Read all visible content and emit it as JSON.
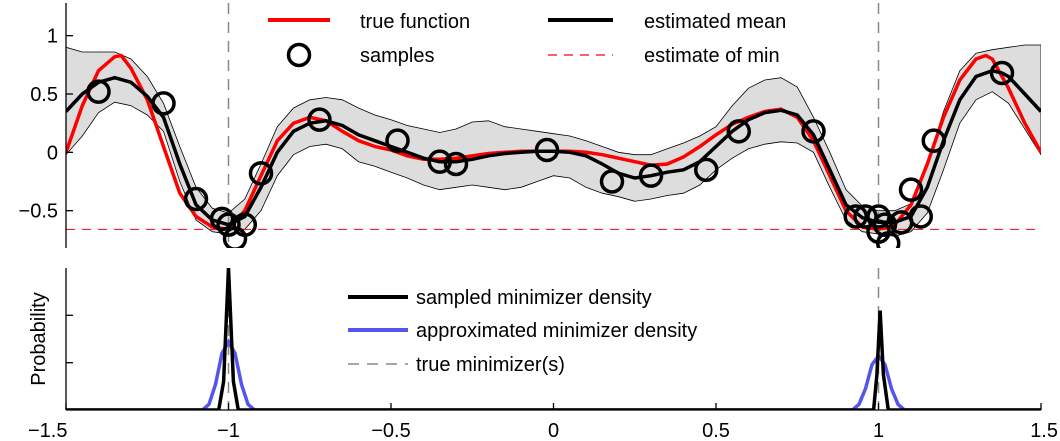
{
  "chart_data": [
    {
      "type": "line",
      "panel": "top",
      "xlim": [
        -1.5,
        1.5
      ],
      "ylim": [
        -0.82,
        1.28
      ],
      "yticks": [
        -0.5,
        0,
        0.5,
        1
      ],
      "ytick_labels": [
        "−0.5",
        "0",
        "0.5",
        "1"
      ],
      "grid": false,
      "legend_position": "top-center",
      "legend": {
        "true_function": "true function",
        "samples": "samples",
        "estimated_mean": "estimated mean",
        "estimate_of_min": "estimate of min"
      },
      "series": [
        {
          "name": "true function",
          "color": "#ff0000",
          "x": [
            -1.5,
            -1.45,
            -1.4,
            -1.35,
            -1.33,
            -1.3,
            -1.25,
            -1.2,
            -1.15,
            -1.1,
            -1.05,
            -1.0,
            -0.95,
            -0.9,
            -0.85,
            -0.8,
            -0.75,
            -0.7,
            -0.65,
            -0.6,
            -0.55,
            -0.5,
            -0.45,
            -0.4,
            -0.35,
            -0.3,
            -0.25,
            -0.2,
            -0.15,
            -0.1,
            -0.05,
            0.0,
            0.05,
            0.1,
            0.15,
            0.2,
            0.25,
            0.3,
            0.35,
            0.4,
            0.45,
            0.5,
            0.55,
            0.6,
            0.65,
            0.7,
            0.75,
            0.8,
            0.85,
            0.9,
            0.95,
            1.0,
            1.05,
            1.1,
            1.15,
            1.2,
            1.25,
            1.3,
            1.33,
            1.35,
            1.4,
            1.45,
            1.5
          ],
          "y": [
            0.0,
            0.4,
            0.7,
            0.82,
            0.83,
            0.72,
            0.45,
            0.05,
            -0.35,
            -0.55,
            -0.64,
            -0.66,
            -0.5,
            -0.2,
            0.1,
            0.25,
            0.3,
            0.27,
            0.18,
            0.1,
            0.05,
            0.02,
            -0.03,
            -0.06,
            -0.06,
            -0.05,
            -0.03,
            -0.01,
            0.0,
            0.01,
            0.01,
            0.01,
            0.01,
            0.0,
            -0.02,
            -0.05,
            -0.08,
            -0.11,
            -0.1,
            -0.04,
            0.05,
            0.15,
            0.24,
            0.3,
            0.35,
            0.37,
            0.3,
            0.1,
            -0.2,
            -0.5,
            -0.64,
            -0.66,
            -0.62,
            -0.45,
            -0.1,
            0.3,
            0.62,
            0.8,
            0.83,
            0.8,
            0.55,
            0.25,
            0.0
          ]
        },
        {
          "name": "estimated mean",
          "color": "#000000",
          "x": [
            -1.5,
            -1.45,
            -1.4,
            -1.35,
            -1.3,
            -1.25,
            -1.2,
            -1.15,
            -1.1,
            -1.05,
            -1.0,
            -0.95,
            -0.9,
            -0.85,
            -0.8,
            -0.75,
            -0.7,
            -0.65,
            -0.6,
            -0.55,
            -0.5,
            -0.45,
            -0.4,
            -0.35,
            -0.3,
            -0.25,
            -0.2,
            -0.15,
            -0.1,
            -0.05,
            0.0,
            0.05,
            0.1,
            0.15,
            0.2,
            0.25,
            0.3,
            0.35,
            0.4,
            0.45,
            0.5,
            0.55,
            0.6,
            0.65,
            0.7,
            0.75,
            0.8,
            0.85,
            0.9,
            0.95,
            1.0,
            1.05,
            1.1,
            1.15,
            1.2,
            1.25,
            1.3,
            1.35,
            1.38,
            1.4,
            1.45,
            1.5
          ],
          "y": [
            0.35,
            0.5,
            0.6,
            0.64,
            0.6,
            0.48,
            0.3,
            -0.1,
            -0.45,
            -0.58,
            -0.62,
            -0.55,
            -0.3,
            0.0,
            0.18,
            0.25,
            0.27,
            0.23,
            0.15,
            0.1,
            0.05,
            0.0,
            -0.05,
            -0.08,
            -0.08,
            -0.06,
            -0.03,
            -0.01,
            0.0,
            0.01,
            0.01,
            0.0,
            -0.03,
            -0.1,
            -0.18,
            -0.22,
            -0.2,
            -0.17,
            -0.15,
            -0.08,
            0.05,
            0.18,
            0.28,
            0.34,
            0.36,
            0.32,
            0.15,
            -0.15,
            -0.45,
            -0.56,
            -0.6,
            -0.6,
            -0.55,
            -0.3,
            0.1,
            0.45,
            0.65,
            0.7,
            0.68,
            0.65,
            0.5,
            0.35
          ]
        },
        {
          "name": "confidence band",
          "color": "#dddddd",
          "x": [
            -1.5,
            -1.45,
            -1.4,
            -1.35,
            -1.3,
            -1.25,
            -1.2,
            -1.15,
            -1.1,
            -1.05,
            -1.0,
            -0.95,
            -0.9,
            -0.85,
            -0.8,
            -0.75,
            -0.7,
            -0.65,
            -0.6,
            -0.55,
            -0.5,
            -0.45,
            -0.4,
            -0.35,
            -0.3,
            -0.25,
            -0.2,
            -0.15,
            -0.1,
            -0.05,
            0.0,
            0.05,
            0.1,
            0.15,
            0.2,
            0.25,
            0.3,
            0.35,
            0.4,
            0.45,
            0.5,
            0.55,
            0.6,
            0.65,
            0.7,
            0.75,
            0.8,
            0.85,
            0.9,
            0.95,
            1.0,
            1.05,
            1.1,
            1.15,
            1.2,
            1.25,
            1.3,
            1.35,
            1.4,
            1.45,
            1.5
          ],
          "upper": [
            0.9,
            0.86,
            0.86,
            0.86,
            0.8,
            0.65,
            0.42,
            0.05,
            -0.3,
            -0.48,
            -0.52,
            -0.4,
            -0.1,
            0.22,
            0.38,
            0.45,
            0.47,
            0.45,
            0.38,
            0.32,
            0.28,
            0.23,
            0.2,
            0.17,
            0.2,
            0.26,
            0.27,
            0.22,
            0.2,
            0.18,
            0.16,
            0.14,
            0.1,
            0.05,
            0.0,
            -0.02,
            -0.02,
            0.03,
            0.08,
            0.14,
            0.22,
            0.4,
            0.55,
            0.62,
            0.64,
            0.56,
            0.3,
            0.0,
            -0.32,
            -0.46,
            -0.5,
            -0.5,
            -0.44,
            -0.1,
            0.35,
            0.7,
            0.85,
            0.88,
            0.9,
            0.92,
            0.92
          ],
          "lower": [
            -0.02,
            0.14,
            0.34,
            0.43,
            0.4,
            0.32,
            0.18,
            -0.25,
            -0.58,
            -0.68,
            -0.7,
            -0.66,
            -0.5,
            -0.2,
            -0.02,
            0.05,
            0.07,
            0.03,
            -0.08,
            -0.12,
            -0.17,
            -0.22,
            -0.28,
            -0.32,
            -0.3,
            -0.28,
            -0.3,
            -0.32,
            -0.3,
            -0.25,
            -0.2,
            -0.22,
            -0.3,
            -0.35,
            -0.38,
            -0.42,
            -0.4,
            -0.37,
            -0.35,
            -0.28,
            -0.15,
            -0.05,
            0.03,
            0.07,
            0.09,
            0.08,
            0.0,
            -0.3,
            -0.58,
            -0.68,
            -0.7,
            -0.72,
            -0.68,
            -0.52,
            -0.15,
            0.25,
            0.45,
            0.52,
            0.42,
            0.2,
            -0.02
          ]
        }
      ],
      "samples": {
        "name": "samples",
        "x": [
          -1.4,
          -1.2,
          -1.1,
          -1.02,
          -1.0,
          -0.98,
          -0.95,
          -0.9,
          -0.72,
          -0.48,
          -0.35,
          -0.3,
          -0.02,
          0.18,
          0.3,
          0.47,
          0.57,
          0.8,
          0.93,
          0.96,
          1.0,
          1.0,
          1.02,
          1.03,
          1.07,
          1.1,
          1.13,
          1.17,
          1.38
        ],
        "y": [
          0.52,
          0.42,
          -0.4,
          -0.57,
          -0.62,
          -0.74,
          -0.62,
          -0.18,
          0.28,
          0.1,
          -0.08,
          -0.1,
          0.02,
          -0.25,
          -0.2,
          -0.15,
          0.18,
          0.18,
          -0.55,
          -0.55,
          -0.55,
          -0.68,
          -0.62,
          -0.78,
          -0.6,
          -0.32,
          -0.55,
          0.1,
          0.68
        ]
      },
      "estimate_of_min": {
        "y": -0.66,
        "color": "#ff0000"
      },
      "true_minimizers": {
        "x": [
          -1.0,
          1.0
        ],
        "color": "#888888"
      }
    },
    {
      "type": "line",
      "panel": "bottom",
      "xlim": [
        -1.5,
        1.5
      ],
      "ylim": [
        0,
        1
      ],
      "ylabel": "Probability",
      "xticks": [
        -1.5,
        -1,
        -0.5,
        0,
        0.5,
        1,
        1.5
      ],
      "xtick_labels": [
        "−1.5",
        "−1",
        "−0.5",
        "0",
        "0.5",
        "1",
        "1.5"
      ],
      "grid": false,
      "legend_position": "center",
      "legend": {
        "sampled": "sampled minimizer density",
        "approximated": "approximated minimizer density",
        "true_min": "true minimizer(s)"
      },
      "series": [
        {
          "name": "sampled minimizer density",
          "color": "#000000",
          "x": [
            -1.5,
            -1.03,
            -1.015,
            -1.0,
            -0.985,
            -0.97,
            0.985,
            0.995,
            1.005,
            1.015,
            1.03,
            1.5
          ],
          "y": [
            0,
            0,
            0.2,
            1.0,
            0.2,
            0,
            0,
            0.25,
            0.7,
            0.25,
            0,
            0
          ]
        },
        {
          "name": "approximated minimizer density",
          "color": "#5555ee",
          "x": [
            -1.5,
            -1.08,
            -1.06,
            -1.04,
            -1.02,
            -1.0,
            -0.98,
            -0.96,
            -0.94,
            -0.92,
            0.92,
            0.94,
            0.96,
            0.98,
            1.0,
            1.02,
            1.04,
            1.06,
            1.08,
            1.5
          ],
          "y": [
            0,
            0,
            0.04,
            0.18,
            0.4,
            0.48,
            0.4,
            0.18,
            0.04,
            0,
            0,
            0.04,
            0.15,
            0.32,
            0.38,
            0.32,
            0.15,
            0.04,
            0,
            0
          ]
        }
      ]
    }
  ]
}
